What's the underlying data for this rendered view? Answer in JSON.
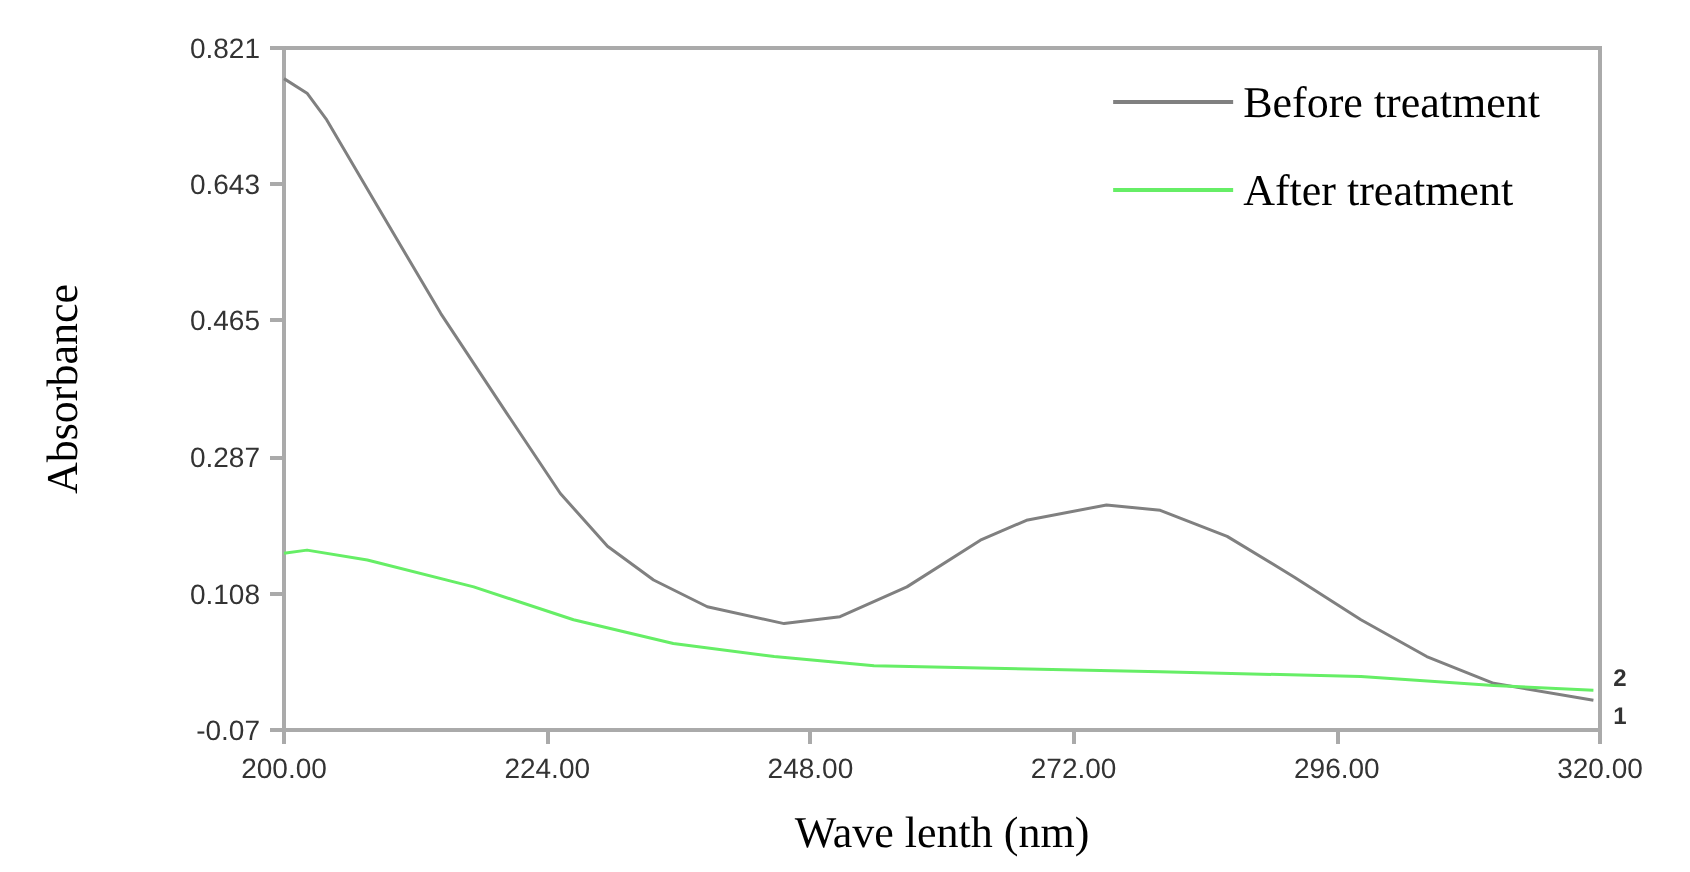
{
  "chart_data": {
    "type": "line",
    "xlabel": "Wave lenth (nm)",
    "ylabel": "Absorbance",
    "xlim": [
      200,
      320
    ],
    "ylim": [
      -0.07,
      0.821
    ],
    "xticks": [
      {
        "value": 200,
        "label": "200.00"
      },
      {
        "value": 224,
        "label": "224.00"
      },
      {
        "value": 248,
        "label": "248.00"
      },
      {
        "value": 272,
        "label": "272.00"
      },
      {
        "value": 296,
        "label": "296.00"
      },
      {
        "value": 320,
        "label": "320.00"
      }
    ],
    "yticks": [
      -0.07,
      0.108,
      0.287,
      0.465,
      0.643,
      0.821
    ],
    "grid": false,
    "legend": "top right",
    "marker": "none",
    "line_style": "solid",
    "series": [
      {
        "name": "Before treatment",
        "color": "#808080",
        "x": [
          200,
          202.1,
          203.9,
          208.2,
          214.3,
          220.3,
          225.2,
          229.5,
          233.7,
          238.6,
          245.6,
          250.7,
          256.8,
          263.5,
          267.7,
          275.0,
          279.9,
          286.0,
          292.1,
          298.2,
          304.2,
          310.3,
          319.4
        ],
        "values": [
          0.781,
          0.762,
          0.727,
          0.622,
          0.474,
          0.344,
          0.239,
          0.17,
          0.126,
          0.091,
          0.069,
          0.078,
          0.117,
          0.178,
          0.204,
          0.224,
          0.217,
          0.183,
          0.13,
          0.074,
          0.026,
          -0.009,
          -0.031
        ]
      },
      {
        "name": "After treatment",
        "color": "#66ee66",
        "x": [
          200,
          202.1,
          207.6,
          217.3,
          226.4,
          235.5,
          244.7,
          253.8,
          263.5,
          279.9,
          298.2,
          310.3,
          319.4
        ],
        "values": [
          0.161,
          0.165,
          0.152,
          0.117,
          0.074,
          0.043,
          0.026,
          0.014,
          0.011,
          0.006,
          0.0,
          -0.012,
          -0.018
        ]
      }
    ],
    "annotations": [
      {
        "text": "2",
        "x": 320,
        "y": -0.018
      },
      {
        "text": "1",
        "x": 320,
        "y": -0.031
      }
    ]
  }
}
